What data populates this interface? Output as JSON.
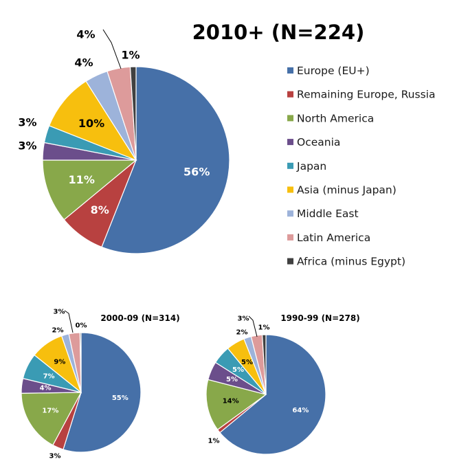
{
  "chart_data": [
    {
      "type": "pie",
      "title": "2010+ (N=224)",
      "categories": [
        "Europe (EU+)",
        "Remaining Europe, Russia",
        "North America",
        "Oceania",
        "Japan",
        "Asia (minus Japan)",
        "Middle East",
        "Latin America",
        "Africa (minus Egypt)"
      ],
      "values": [
        56,
        8,
        11,
        3,
        3,
        10,
        4,
        4,
        1
      ],
      "labels": [
        "56%",
        "8%",
        "11%",
        "3%",
        "3%",
        "10%",
        "4%",
        "4%",
        "1%"
      ],
      "legend": "right"
    },
    {
      "type": "pie",
      "title": "2000-09 (N=314)",
      "categories": [
        "Europe (EU+)",
        "Remaining Europe, Russia",
        "North America",
        "Oceania",
        "Japan",
        "Asia (minus Japan)",
        "Middle East",
        "Latin America",
        "Africa (minus Egypt)"
      ],
      "values": [
        55,
        3,
        17,
        4,
        7,
        9,
        2,
        3,
        0.3
      ],
      "labels": [
        "55%",
        "3%",
        "17%",
        "4%",
        "7%",
        "9%",
        "2%",
        "3%",
        "0%"
      ]
    },
    {
      "type": "pie",
      "title": "1990-99 (N=278)",
      "categories": [
        "Europe (EU+)",
        "Remaining Europe, Russia",
        "North America",
        "Oceania",
        "Japan",
        "Asia (minus Japan)",
        "Middle East",
        "Latin America",
        "Africa (minus Egypt)"
      ],
      "values": [
        64,
        1,
        14,
        5,
        5,
        5,
        2,
        3,
        1
      ],
      "labels": [
        "64%",
        "1%",
        "14%",
        "5%",
        "5%",
        "5%",
        "2%",
        "3%",
        "1%"
      ]
    }
  ],
  "colors": [
    "#4670a8",
    "#b84140",
    "#88a84a",
    "#6b4e8b",
    "#3a9bb4",
    "#f7bf0e",
    "#9db3da",
    "#dd9b9b",
    "#404040"
  ]
}
